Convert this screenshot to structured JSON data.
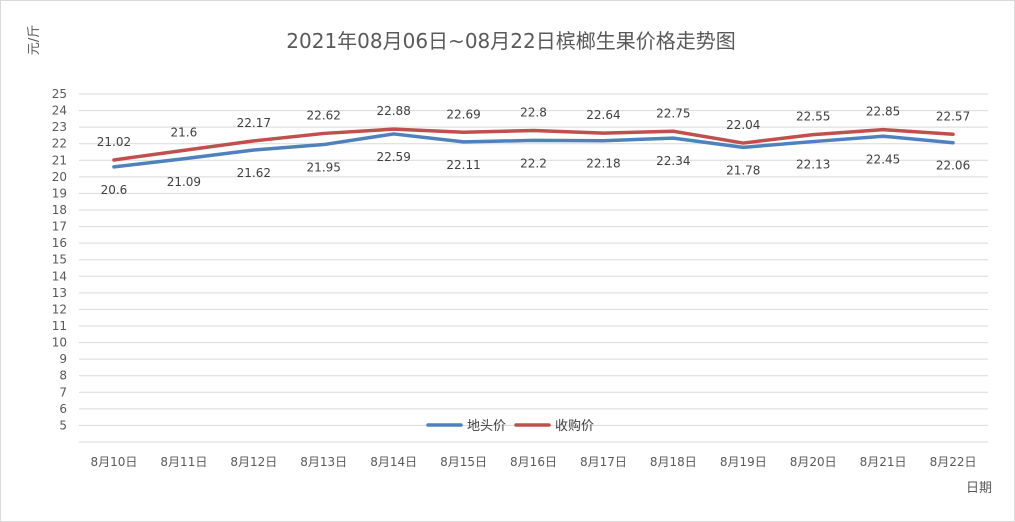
{
  "chart_data": {
    "type": "line",
    "title": "2021年08月06日~08月22日槟榔生果价格走势图",
    "xlabel": "日期",
    "ylabel": "元/斤",
    "categories": [
      "8月10日",
      "8月11日",
      "8月12日",
      "8月13日",
      "8月14日",
      "8月15日",
      "8月16日",
      "8月17日",
      "8月18日",
      "8月19日",
      "8月20日",
      "8月21日",
      "8月22日"
    ],
    "ylim": [
      4,
      25
    ],
    "yticks": [
      5,
      6,
      7,
      8,
      9,
      10,
      11,
      12,
      13,
      14,
      15,
      16,
      17,
      18,
      19,
      20,
      21,
      22,
      23,
      24,
      25
    ],
    "grid": true,
    "legend_position": "bottom-center",
    "series": [
      {
        "name": "地头价",
        "color": "#4f81bd",
        "label_position": "below",
        "values": [
          20.6,
          21.09,
          21.62,
          21.95,
          22.59,
          22.11,
          22.2,
          22.18,
          22.34,
          21.78,
          22.13,
          22.45,
          22.06
        ]
      },
      {
        "name": "收购价",
        "color": "#c0504d",
        "label_position": "above",
        "values": [
          21.02,
          21.6,
          22.17,
          22.62,
          22.88,
          22.69,
          22.8,
          22.64,
          22.75,
          22.04,
          22.55,
          22.85,
          22.57
        ]
      }
    ]
  }
}
